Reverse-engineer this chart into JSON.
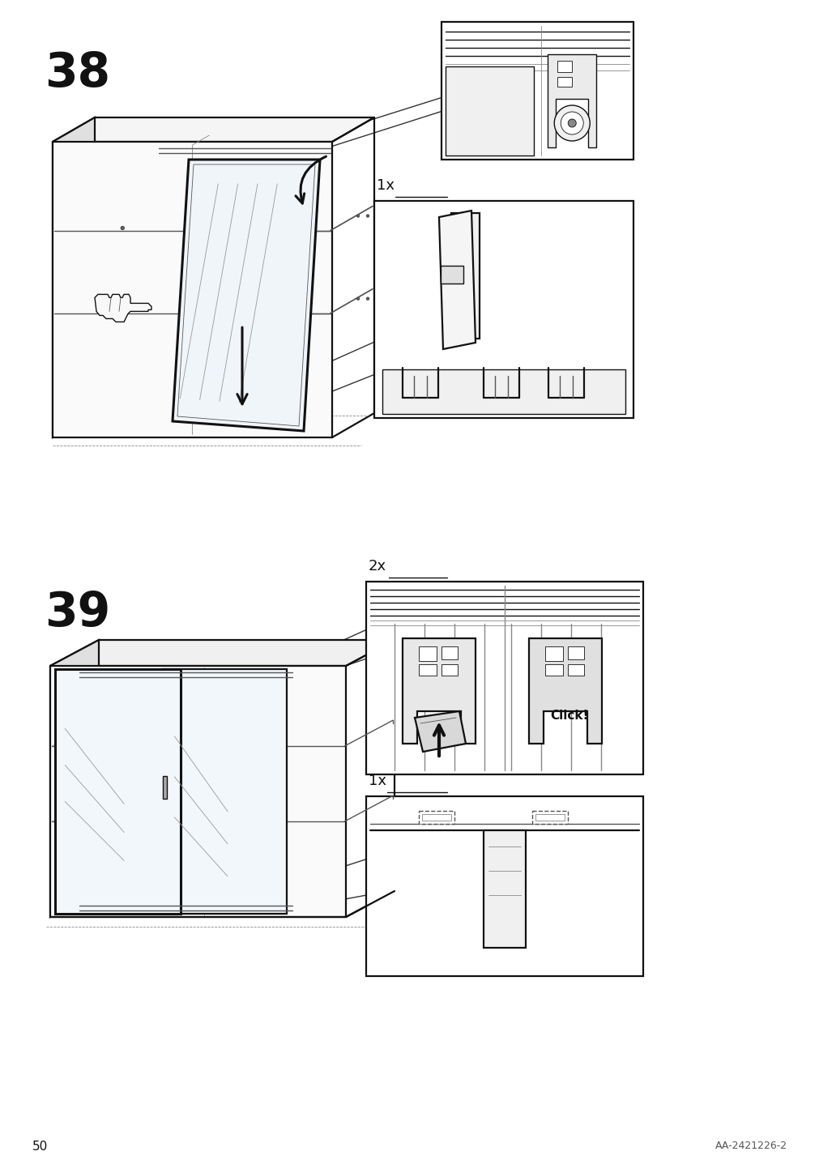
{
  "page_number": "50",
  "doc_id": "AA-2421226-2",
  "background_color": "#ffffff",
  "step_numbers": [
    "38",
    "39"
  ],
  "step_number_fontsize": 42,
  "step_number_fontweight": "bold",
  "page_number_fontsize": 11,
  "doc_id_fontsize": 9,
  "click_label": "Click!",
  "click_fontsize": 11,
  "click_fontweight": "bold",
  "quantity_1x_label": "1x",
  "quantity_2x_label": "2x",
  "quantity_fontsize": 13
}
